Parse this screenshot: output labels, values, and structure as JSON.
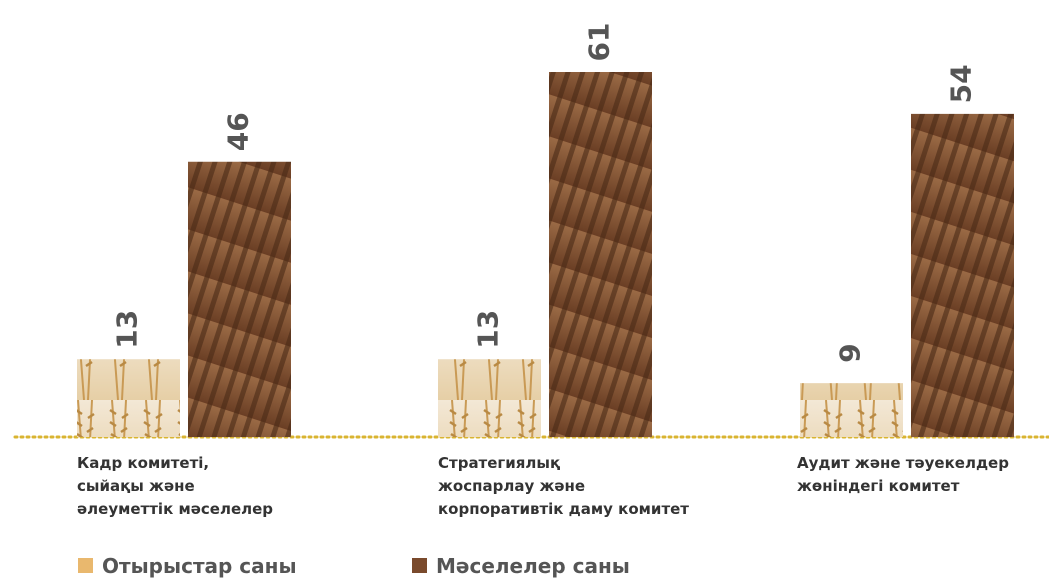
{
  "chart_data": {
    "type": "bar",
    "categories": [
      [
        "Кадр комитеті,",
        "сыйақы және",
        "әлеуметтік мәселелер"
      ],
      [
        "Стратегиялық",
        "жоспарлау және",
        "корпоративтік даму комитет"
      ],
      [
        "Аудит және тәуекелдер",
        "жөніндегі комитет"
      ]
    ],
    "series": [
      {
        "name": "Отырыстар саны",
        "color": "#e9b86e",
        "values": [
          13,
          13,
          9
        ]
      },
      {
        "name": "Мәселелер саны",
        "color": "#7a4a2c",
        "values": [
          46,
          61,
          54
        ]
      }
    ]
  }
}
